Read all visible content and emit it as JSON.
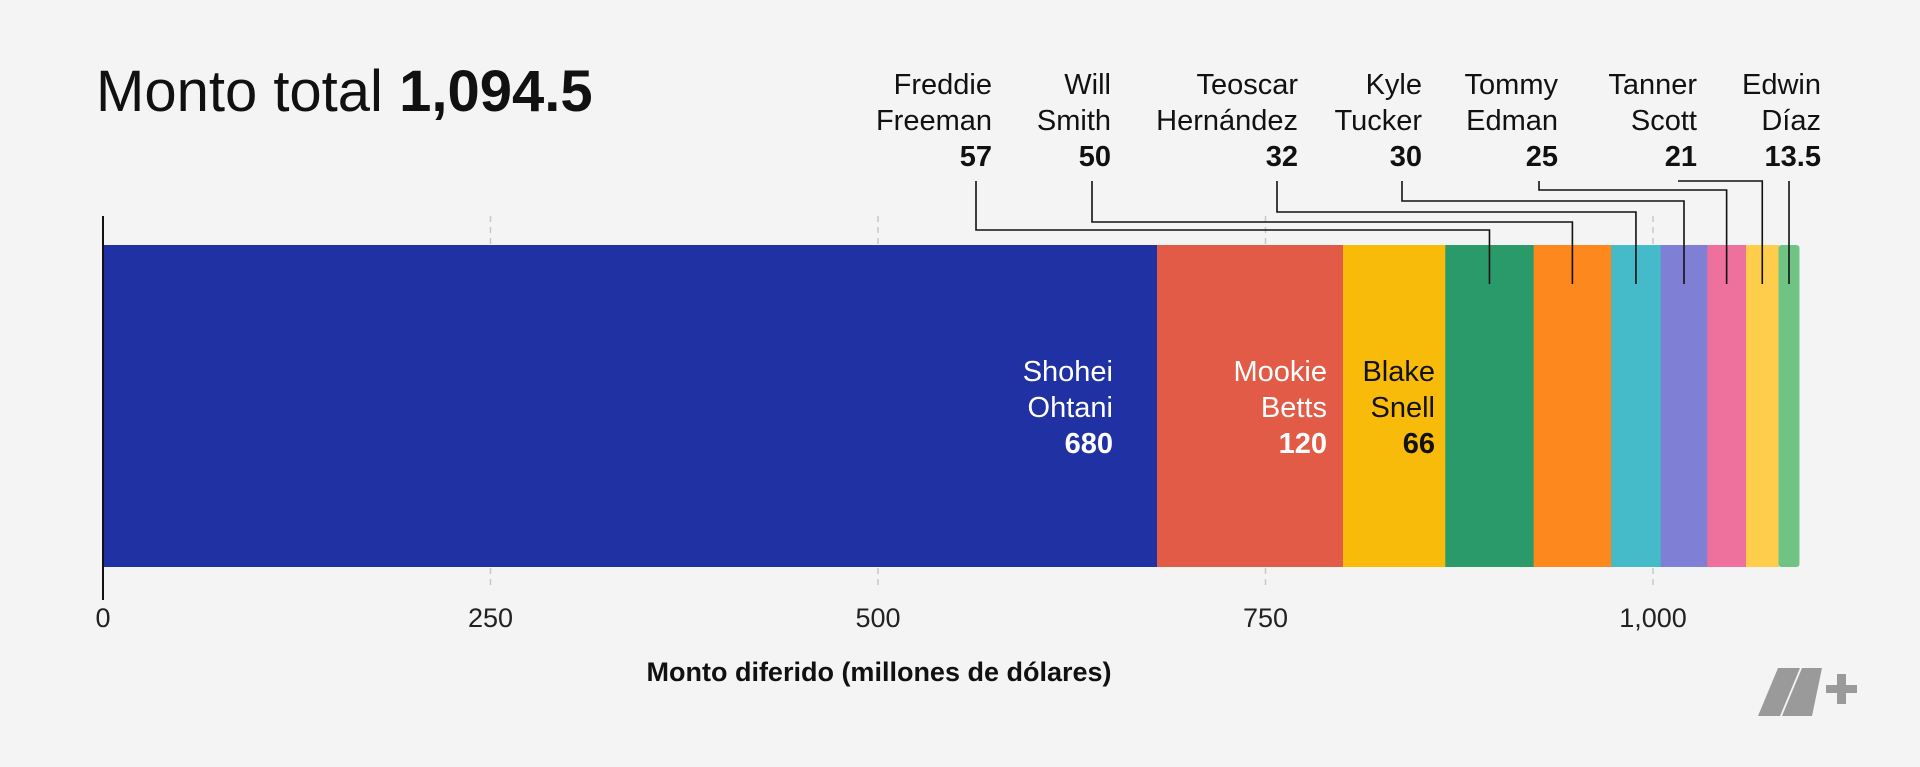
{
  "chart_data": {
    "type": "stacked_bar",
    "title": "Monto total",
    "total": 1094.5,
    "total_label": "1,094.5",
    "xlabel": "Monto diferido (millones de dólares)",
    "xlim": [
      0,
      1100
    ],
    "xticks": [
      0,
      250,
      500,
      750,
      {
        "value": 1000,
        "label": "1,000"
      }
    ],
    "grid": true,
    "series": [
      {
        "name": "Shohei Ohtani",
        "color": "#2031a3",
        "text_color": "#ffffff",
        "values": [
          680
        ]
      },
      {
        "name": "Mookie Betts",
        "color": "#e25b46",
        "text_color": "#ffffff",
        "values": [
          120
        ]
      },
      {
        "name": "Blake Snell",
        "color": "#f8bb0a",
        "text_color": "#111111",
        "values": [
          66
        ]
      },
      {
        "name": "Freddie Freeman",
        "color": "#2a9a6a",
        "values": [
          57
        ]
      },
      {
        "name": "Will Smith",
        "color": "#fd891e",
        "values": [
          50
        ]
      },
      {
        "name": "Teoscar Hernández",
        "color": "#45bac8",
        "values": [
          32
        ]
      },
      {
        "name": "Kyle Tucker",
        "color": "#7f7fd6",
        "values": [
          30
        ]
      },
      {
        "name": "Tommy Edman",
        "color": "#ee709d",
        "values": [
          25
        ]
      },
      {
        "name": "Tanner Scott",
        "color": "#fdcd4b",
        "values": [
          21
        ]
      },
      {
        "name": "Edwin Díaz",
        "color": "#6fc485",
        "values": [
          13.5
        ]
      }
    ]
  }
}
